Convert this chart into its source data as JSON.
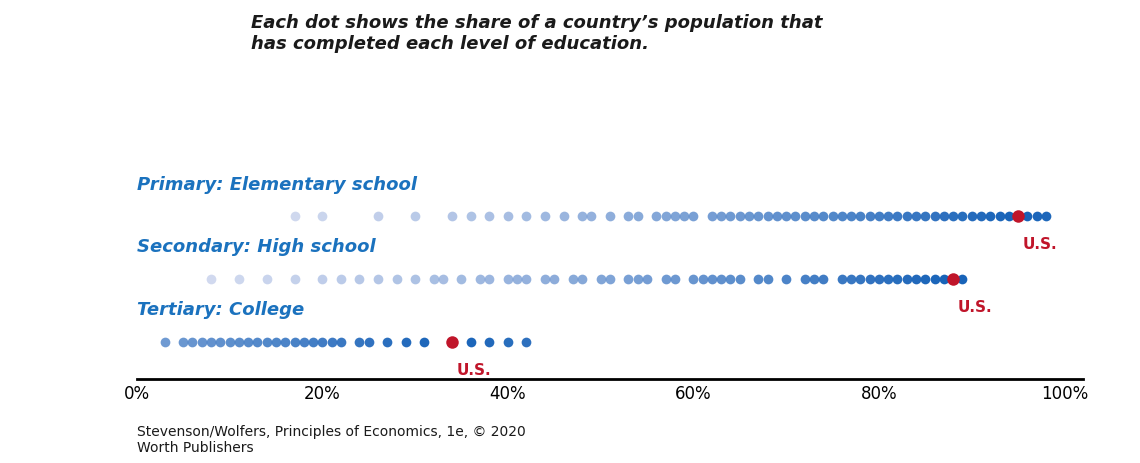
{
  "title_text": "Each dot shows the share of a country’s population that\nhas completed each level of education.",
  "caption": "Stevenson/Wolfers, Principles of Economics, 1e, © 2020\nWorth Publishers",
  "categories": [
    "Primary: Elementary school",
    "Secondary: High school",
    "Tertiary: College"
  ],
  "category_color": "#1B72BE",
  "us_dot_color": "#C0152A",
  "background_color": "#ffffff",
  "primary_values": [
    17,
    20,
    26,
    30,
    34,
    36,
    38,
    40,
    42,
    44,
    46,
    48,
    49,
    51,
    53,
    54,
    56,
    57,
    58,
    59,
    60,
    62,
    63,
    64,
    65,
    66,
    67,
    68,
    69,
    70,
    71,
    72,
    73,
    74,
    75,
    76,
    77,
    78,
    79,
    80,
    81,
    82,
    83,
    84,
    85,
    86,
    87,
    88,
    89,
    90,
    91,
    92,
    93,
    94,
    96,
    97,
    98
  ],
  "secondary_values": [
    8,
    11,
    14,
    17,
    20,
    22,
    24,
    26,
    28,
    30,
    32,
    33,
    35,
    37,
    38,
    40,
    41,
    42,
    44,
    45,
    47,
    48,
    50,
    51,
    53,
    54,
    55,
    57,
    58,
    60,
    61,
    62,
    63,
    64,
    65,
    67,
    68,
    70,
    72,
    73,
    74,
    76,
    77,
    78,
    79,
    80,
    81,
    82,
    83,
    84,
    85,
    86,
    87,
    88,
    89
  ],
  "tertiary_values": [
    3,
    5,
    6,
    7,
    8,
    9,
    10,
    11,
    12,
    13,
    14,
    15,
    16,
    17,
    18,
    19,
    20,
    21,
    22,
    24,
    25,
    27,
    29,
    31,
    34,
    36,
    38,
    40,
    42
  ],
  "us_primary": 95,
  "us_secondary": 88,
  "us_tertiary": 34,
  "xlim": [
    0,
    102
  ],
  "xticks": [
    0,
    20,
    40,
    60,
    80,
    100
  ],
  "xticklabels": [
    "0%",
    "20%",
    "40%",
    "60%",
    "80%",
    "100%"
  ],
  "dot_markersize": 7,
  "us_dot_markersize": 9,
  "title_fontstyle": "italic",
  "title_fontsize": 13,
  "label_fontsize": 13,
  "tick_fontsize": 12,
  "us_label_fontsize": 11
}
